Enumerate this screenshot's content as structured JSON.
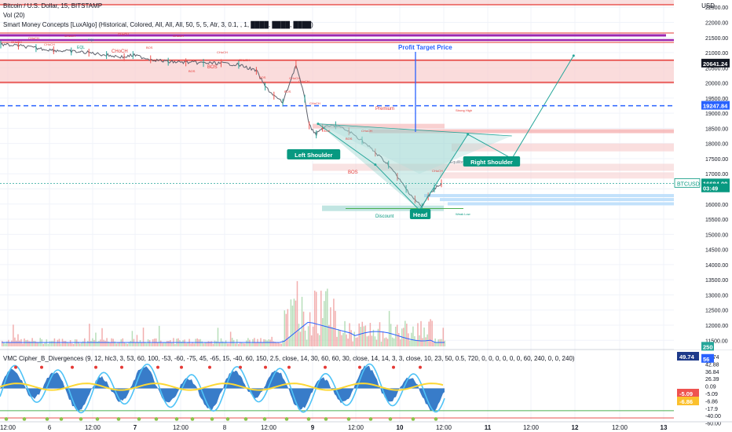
{
  "header": {
    "symbol_line": "Bitcoin / U.S. Dollar, 15, BITSTAMP",
    "vol_line": "Vol (20)",
    "smc_line": "Smart Money Concepts [LuxAlgo] (Historical, Colored, All, All, All, 50, 5, 5, Atr, 3, 0.1, , 1, ████, ████, ████)",
    "currency": "USD"
  },
  "indicator": {
    "legend": "VMC Cipher_B_Divergences (9, 12, hlc3, 3, 53, 60, 100, -53, -60, -75, 45, -65, 15, -40, 60, 150, 2.5, close, 14, 30, 60, 60, 30, close, 14, 14, 3, 3, close, 10, 23, 50, 0.5, 720, 0, 0, 0, 0, 0, 0, 60, 240, 0, 0, 240)",
    "ticks": [
      "49.74",
      "42.88",
      "36.84",
      "26.39",
      "0.09",
      "-5.09",
      "-6.86",
      "-17.9",
      "-40.00",
      "-60.00"
    ],
    "badges": [
      {
        "text": "49.74",
        "color": "#1e3a8a"
      },
      {
        "text": "-5.09",
        "color": "#ef5350"
      },
      {
        "text": "-6.86",
        "color": "#fbc02d"
      }
    ]
  },
  "price_axis": {
    "ticks": [
      "22500.00",
      "22000.00",
      "21500.00",
      "21000.00",
      "20500.00",
      "20000.00",
      "19500.00",
      "19000.00",
      "18500.00",
      "18000.00",
      "17500.00",
      "17000.00",
      "16500.00",
      "16000.00",
      "15500.00",
      "15000.00",
      "14500.00",
      "14000.00",
      "13500.00",
      "13000.00",
      "12500.00",
      "12000.00",
      "11500.00"
    ],
    "badges": [
      {
        "text": "20641.24",
        "color": "#131722",
        "price": 20641.24
      },
      {
        "text": "19247.84",
        "color": "#2962ff",
        "price": 19247.84
      },
      {
        "text": "16684.00",
        "color": "#089981",
        "price": 16684
      },
      {
        "text": "03:49",
        "color": "#089981",
        "price": 16520
      },
      {
        "text": "BTCUSD",
        "color": "#089981",
        "price": 16684,
        "side": "left"
      },
      {
        "text": "250",
        "color": "#26a69a",
        "price": 11290
      },
      {
        "text": "56",
        "color": "#2962ff",
        "price": 10890
      }
    ]
  },
  "time_axis": {
    "labels": [
      "12:00",
      "6",
      "12:00",
      "7",
      "12:00",
      "8",
      "12:00",
      "9",
      "12:00",
      "10",
      "12:00",
      "11",
      "12:00",
      "12",
      "12:00",
      "13"
    ],
    "bold": [
      "7",
      "9",
      "10",
      "11",
      "12",
      "13"
    ]
  },
  "annotations": {
    "profit_target": "Profit Target Price",
    "premium": "Premium",
    "discount": "Discount",
    "equilibrium": "Equilibrium",
    "strong_high": "Strong High",
    "weak_low": "Weak Low",
    "left_shoulder": "Left Shoulder",
    "head": "Head",
    "right_shoulder": "Right Shoulder",
    "bos": "BOS",
    "choch": "CHoCH",
    "eql": "EQL"
  },
  "chart_data": {
    "type": "line",
    "title": "Bitcoin / U.S. Dollar, 15, BITSTAMP",
    "ylabel": "USD",
    "ylim": [
      10650,
      22650
    ],
    "x_range_days": [
      5.5,
      13.2
    ],
    "price_series": {
      "name": "BTCUSD",
      "x": [
        5.5,
        5.7,
        5.9,
        6.1,
        6.3,
        6.5,
        6.7,
        6.9,
        7.0,
        7.2,
        7.4,
        7.6,
        7.8,
        8.0,
        8.2,
        8.4,
        8.5,
        8.6,
        8.7,
        8.85,
        8.95,
        9.0,
        9.08,
        9.15,
        9.3,
        9.45,
        9.6,
        9.75,
        9.9,
        10.0,
        10.1,
        10.2,
        10.28,
        10.35,
        10.42,
        10.5
      ],
      "values": [
        21270,
        21230,
        21150,
        21080,
        21040,
        21000,
        20920,
        20850,
        20920,
        20780,
        20700,
        20680,
        20660,
        20650,
        20600,
        20400,
        19880,
        19580,
        19350,
        20600,
        19480,
        18600,
        18300,
        18520,
        18600,
        18400,
        18100,
        17700,
        17300,
        16900,
        16500,
        16150,
        15900,
        16250,
        16520,
        16684
      ]
    },
    "projection_path": {
      "name": "Head and shoulders projection",
      "x": [
        9.1,
        9.75,
        10.25,
        10.8,
        11.3,
        12.0
      ],
      "values": [
        18650,
        17300,
        15800,
        18300,
        17500,
        20900
      ]
    },
    "levels": [
      {
        "label": "20641.24",
        "price": 20641.24
      },
      {
        "label": "19247.84",
        "price": 19247.84
      },
      {
        "label": "16684.00",
        "price": 16684
      }
    ],
    "volume": {
      "name": "Vol (20)",
      "last": 250
    },
    "oscillator": {
      "name": "VMC Cipher_B_Divergences",
      "ylim": [
        -60,
        60
      ],
      "last": 49.74
    }
  }
}
